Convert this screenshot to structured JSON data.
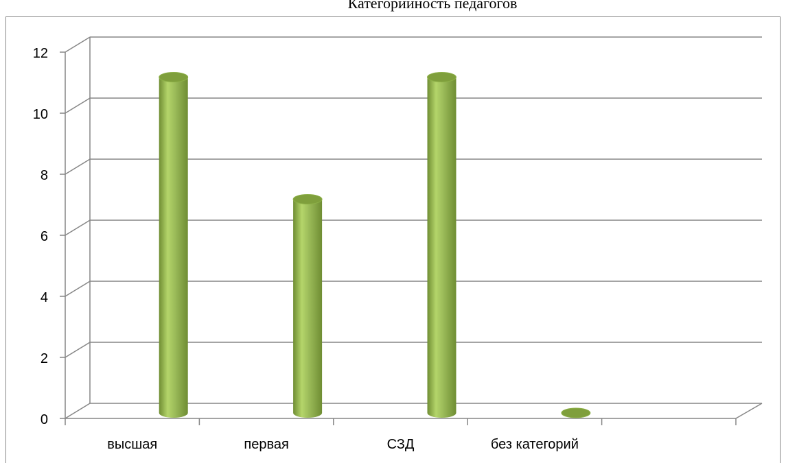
{
  "chart_data": {
    "type": "bar",
    "title": "Категорийность педагогов",
    "categories": [
      "высшая",
      "первая",
      "СЗД",
      "без категорий"
    ],
    "values": [
      11,
      7,
      11,
      0
    ],
    "ylim": [
      0,
      12
    ],
    "yticks": [
      0,
      2,
      4,
      6,
      8,
      10,
      12
    ],
    "xlabel": "",
    "ylabel": "",
    "grid": true,
    "legend": "none",
    "colors": {
      "bar_light": "#b4d56a",
      "bar_mid": "#9bbb59",
      "bar_dark": "#6f8d33",
      "bar_top": "#7f9f3c",
      "grid": "#868686",
      "frame": "#868686"
    }
  }
}
